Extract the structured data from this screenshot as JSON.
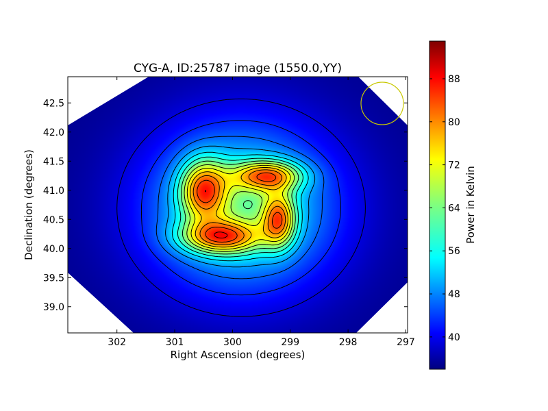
{
  "chart_data": {
    "type": "heatmap",
    "title": "CYG-A, ID:25787 image (1550.0,YY)",
    "xlabel": "Right Ascension (degrees)",
    "ylabel": "Declination (degrees)",
    "xlim": [
      302.85,
      296.97
    ],
    "ylim": [
      38.55,
      42.95
    ],
    "x_ticks": [
      302,
      301,
      300,
      299,
      298,
      297
    ],
    "y_ticks": [
      39.0,
      39.5,
      40.0,
      40.5,
      41.0,
      41.5,
      42.0,
      42.5
    ],
    "colorbar": {
      "label": "Power in Kelvin",
      "ticks": [
        40,
        48,
        56,
        64,
        72,
        80,
        88
      ],
      "range": [
        34,
        95
      ],
      "colormap": "jet"
    },
    "peaks": [
      {
        "ra": 300.5,
        "dec": 41.0,
        "value": 93
      },
      {
        "ra": 299.4,
        "dec": 41.25,
        "value": 88
      },
      {
        "ra": 300.2,
        "dec": 40.2,
        "value": 90
      },
      {
        "ra": 299.2,
        "dec": 40.5,
        "value": 88
      }
    ],
    "background_value": 35,
    "contour_count": 14,
    "beam": {
      "ra": 297.4,
      "dec": 42.5,
      "radius_deg": 0.37,
      "color": "#c8c800"
    }
  }
}
